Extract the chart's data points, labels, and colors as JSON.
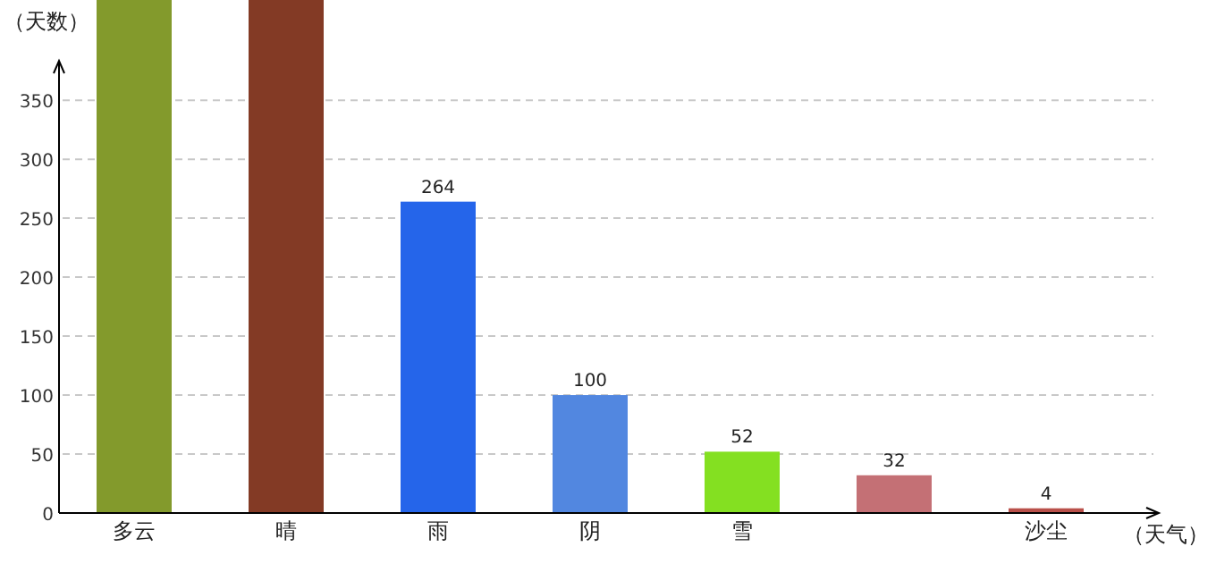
{
  "chart_data": {
    "type": "bar",
    "xlabel": "（天气）",
    "ylabel": "（天数）",
    "categories": [
      "多云",
      "晴",
      "雨",
      "阴",
      "雪",
      null,
      "沙尘"
    ],
    "values": [
      435,
      435,
      264,
      100,
      52,
      32,
      4
    ],
    "colors": [
      "#839a2c",
      "#833a25",
      "#2565ea",
      "#5287e0",
      "#84e021",
      "#c47075",
      "#b9504a"
    ],
    "value_labels": [
      null,
      null,
      "264",
      "100",
      "52",
      "32",
      "4"
    ],
    "ylim": [
      0,
      435
    ],
    "yticks": [
      0,
      50,
      100,
      150,
      200,
      250,
      300,
      350
    ],
    "grid": "y"
  }
}
